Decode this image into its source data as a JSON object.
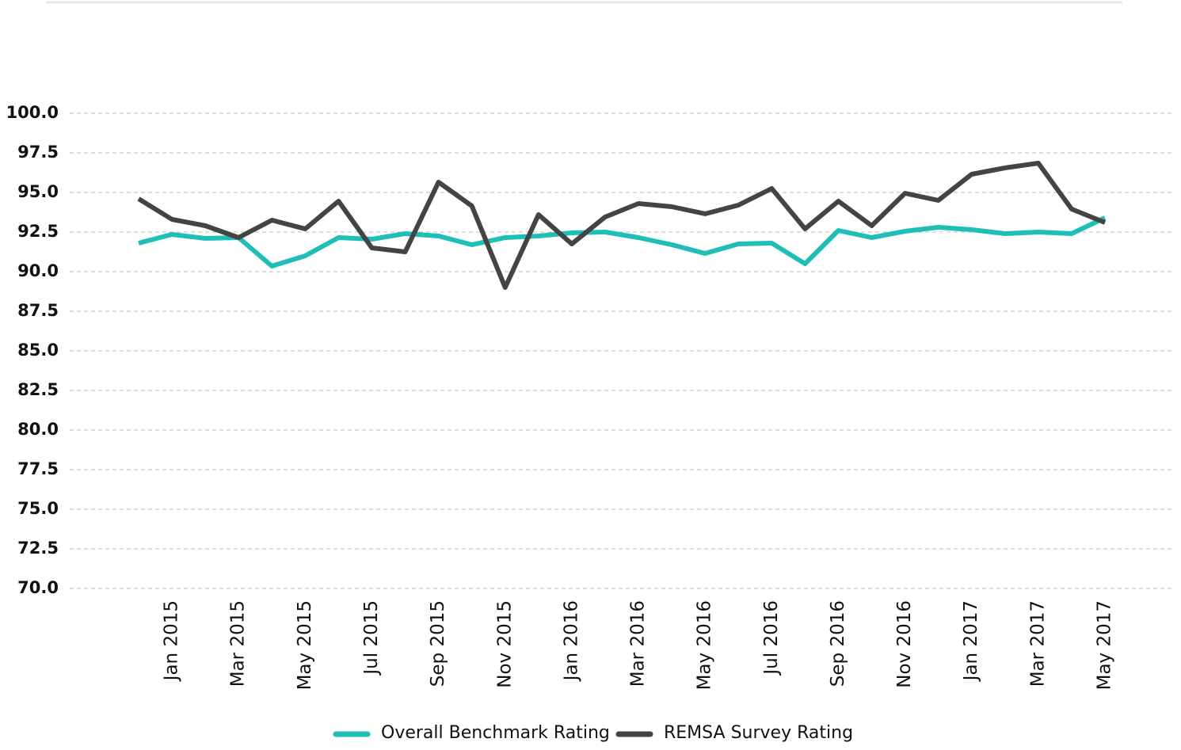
{
  "chart_data": {
    "type": "line",
    "categories": [
      null,
      "Jan 2015",
      null,
      "Mar 2015",
      null,
      "May 2015",
      null,
      "Jul 2015",
      null,
      "Sep 2015",
      null,
      "Nov 2015",
      null,
      "Jan 2016",
      null,
      "Mar 2016",
      null,
      "May 2016",
      null,
      "Jul 2016",
      null,
      "Sep 2016",
      null,
      "Nov 2016",
      null,
      "Jan 2017",
      null,
      "Mar 2017",
      null,
      "May 2017"
    ],
    "series": [
      {
        "name": "Overall Benchmark Rating",
        "color": "#1fbfb8",
        "values": [
          91.8,
          92.35,
          92.1,
          92.15,
          90.35,
          91.0,
          92.15,
          92.05,
          92.4,
          92.25,
          91.7,
          92.15,
          92.25,
          92.45,
          92.5,
          92.15,
          91.7,
          91.15,
          91.75,
          91.8,
          90.5,
          92.6,
          92.15,
          92.55,
          92.8,
          92.65,
          92.4,
          92.5,
          92.4,
          93.4
        ]
      },
      {
        "name": "REMSA Survey Rating",
        "color": "#444444",
        "values": [
          94.6,
          93.3,
          92.9,
          92.15,
          93.25,
          92.7,
          94.45,
          91.5,
          91.25,
          95.65,
          94.15,
          89.0,
          93.6,
          91.75,
          93.45,
          94.3,
          94.1,
          93.65,
          94.2,
          95.25,
          92.7,
          94.45,
          92.9,
          94.95,
          94.5,
          96.15,
          96.55,
          96.85,
          93.95,
          93.1
        ]
      }
    ],
    "ylim": [
      70,
      100
    ],
    "yticks": [
      {
        "value": 70,
        "label": "70.0"
      },
      {
        "value": 72.5,
        "label": "72.5"
      },
      {
        "value": 75,
        "label": "75.0"
      },
      {
        "value": 77.5,
        "label": "77.5"
      },
      {
        "value": 80,
        "label": "80.0"
      },
      {
        "value": 82.5,
        "label": "82.5"
      },
      {
        "value": 85,
        "label": "85.0"
      },
      {
        "value": 87.5,
        "label": "87.5"
      },
      {
        "value": 90,
        "label": "90.0"
      },
      {
        "value": 92.5,
        "label": "92.5"
      },
      {
        "value": 95,
        "label": "95.0"
      },
      {
        "value": 97.5,
        "label": "97.5"
      },
      {
        "value": 100,
        "label": "100.0"
      }
    ],
    "grid": true,
    "legend": "bottom"
  }
}
